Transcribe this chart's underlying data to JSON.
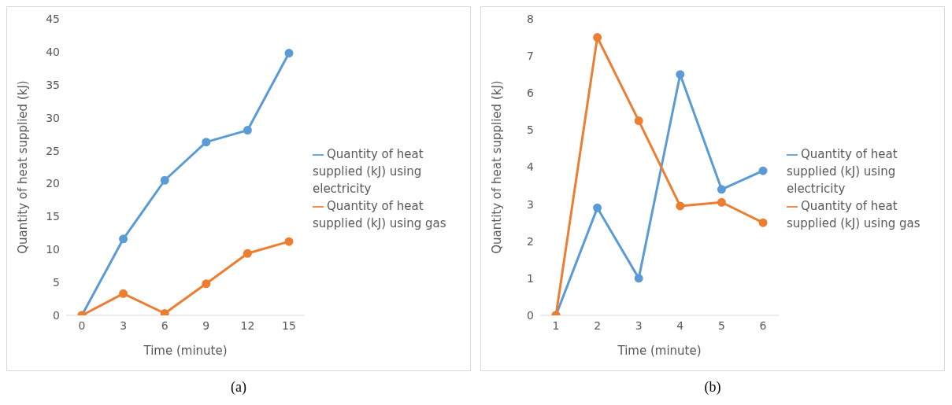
{
  "chart_data": [
    {
      "type": "line",
      "categories": [
        "0",
        "3",
        "6",
        "9",
        "12",
        "15"
      ],
      "xlabel": "Time (minute)",
      "ylabel": "Quantity of heat supplied (kJ)",
      "ylim": [
        0,
        45
      ],
      "yticks": [
        0,
        5,
        10,
        15,
        20,
        25,
        30,
        35,
        40,
        45
      ],
      "grid": false,
      "legend": "right",
      "marker": "circle",
      "line_style": "solid",
      "annotations": [
        "(a)"
      ],
      "series": [
        {
          "name": "Quantity of heat supplied (kJ) using electricity",
          "color": "#5b9bd5",
          "values": [
            0,
            11.6,
            20.5,
            26.3,
            28.1,
            39.8
          ]
        },
        {
          "name": "Quantity of heat supplied (kJ) using gas",
          "color": "#ed7d31",
          "values": [
            0,
            3.3,
            0.3,
            4.8,
            9.4,
            11.2
          ]
        }
      ]
    },
    {
      "type": "line",
      "categories": [
        "1",
        "2",
        "3",
        "4",
        "5",
        "6"
      ],
      "xlabel": "Time (minute)",
      "ylabel": "Quantity of heat supplied (kJ)",
      "ylim": [
        0,
        8
      ],
      "yticks": [
        0,
        1,
        2,
        3,
        4,
        5,
        6,
        7,
        8
      ],
      "grid": false,
      "legend": "right",
      "marker": "circle",
      "line_style": "solid",
      "annotations": [
        "(b)"
      ],
      "series": [
        {
          "name": "Quantity of heat supplied (kJ) using electricity",
          "color": "#5b9bd5",
          "values": [
            0,
            2.9,
            1.0,
            6.5,
            3.4,
            3.9
          ]
        },
        {
          "name": "Quantity of heat supplied (kJ) using gas",
          "color": "#ed7d31",
          "values": [
            0,
            7.5,
            5.25,
            2.95,
            3.05,
            2.5
          ]
        }
      ]
    }
  ]
}
